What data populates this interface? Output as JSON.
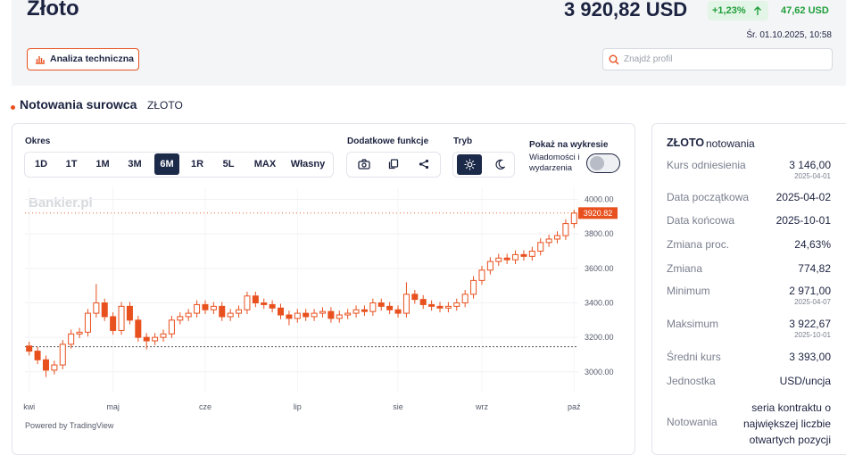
{
  "header": {
    "title": "Złoto",
    "price": "3 920,82 USD",
    "change_pct": "+1,23%",
    "change_abs": "47,62 USD",
    "timestamp": "Śr. 01.10.2025, 10:58",
    "button": "Analiza techniczna",
    "search_placeholder": "Znajdź profil"
  },
  "section": {
    "title": "Notowania surowca",
    "subtitle": "ZŁOTO"
  },
  "toolbar": {
    "period_label": "Okres",
    "periods": [
      "1D",
      "1T",
      "1M",
      "3M",
      "6M",
      "1R",
      "5L",
      "MAX",
      "Własny"
    ],
    "active_period_index": 4,
    "functions_label": "Dodatkowe funkcje",
    "mode_label": "Tryb",
    "show_label": "Pokaż na wykresie",
    "show_option": "Wiadomości i wydarzenia"
  },
  "chart_data": {
    "type": "candlestick",
    "watermark": "Bankier.pl",
    "footer": "Powered by TradingView",
    "color": "#e8501e",
    "categories": [
      "kwi",
      null,
      null,
      null,
      null,
      null,
      null,
      null,
      null,
      null,
      "maj",
      null,
      null,
      null,
      null,
      null,
      null,
      null,
      null,
      null,
      null,
      "cze",
      null,
      null,
      null,
      null,
      null,
      null,
      null,
      null,
      null,
      null,
      "lip",
      null,
      null,
      null,
      null,
      null,
      null,
      null,
      null,
      null,
      null,
      null,
      "sie",
      null,
      null,
      null,
      null,
      null,
      null,
      null,
      null,
      null,
      "wrz",
      null,
      null,
      null,
      null,
      null,
      null,
      null,
      null,
      null,
      null,
      "paź"
    ],
    "open": [
      3150,
      3120,
      3070,
      3010,
      3040,
      3160,
      3220,
      3230,
      3340,
      3400,
      3320,
      3240,
      3380,
      3300,
      3200,
      3180,
      3200,
      3220,
      3300,
      3320,
      3340,
      3390,
      3360,
      3380,
      3320,
      3340,
      3360,
      3440,
      3400,
      3390,
      3370,
      3330,
      3310,
      3340,
      3320,
      3340,
      3350,
      3310,
      3330,
      3340,
      3360,
      3350,
      3400,
      3380,
      3360,
      3340,
      3450,
      3420,
      3390,
      3380,
      3370,
      3380,
      3400,
      3450,
      3530,
      3590,
      3640,
      3660,
      3650,
      3680,
      3670,
      3700,
      3750,
      3770,
      3790,
      3860
    ],
    "high": [
      3175,
      3145,
      3095,
      3065,
      3185,
      3245,
      3255,
      3365,
      3510,
      3425,
      3345,
      3405,
      3405,
      3325,
      3225,
      3225,
      3245,
      3325,
      3345,
      3365,
      3415,
      3415,
      3405,
      3405,
      3365,
      3385,
      3465,
      3465,
      3425,
      3415,
      3395,
      3355,
      3365,
      3365,
      3365,
      3375,
      3375,
      3355,
      3365,
      3385,
      3385,
      3425,
      3425,
      3405,
      3385,
      3520,
      3475,
      3445,
      3415,
      3405,
      3405,
      3425,
      3475,
      3555,
      3615,
      3665,
      3685,
      3685,
      3705,
      3705,
      3725,
      3775,
      3795,
      3815,
      3885,
      3940
    ],
    "low": [
      3095,
      3045,
      2970,
      2985,
      3015,
      3135,
      3195,
      3205,
      3315,
      3295,
      3215,
      3215,
      3275,
      3175,
      3130,
      3155,
      3175,
      3195,
      3275,
      3295,
      3315,
      3335,
      3335,
      3295,
      3295,
      3315,
      3335,
      3375,
      3365,
      3345,
      3305,
      3270,
      3285,
      3295,
      3295,
      3315,
      3285,
      3285,
      3305,
      3315,
      3325,
      3325,
      3355,
      3335,
      3315,
      3315,
      3395,
      3365,
      3355,
      3345,
      3345,
      3355,
      3375,
      3425,
      3505,
      3565,
      3615,
      3625,
      3625,
      3645,
      3645,
      3675,
      3725,
      3745,
      3765,
      3835
    ],
    "close": [
      3120,
      3070,
      3010,
      3040,
      3160,
      3220,
      3230,
      3340,
      3400,
      3320,
      3240,
      3380,
      3300,
      3200,
      3180,
      3200,
      3220,
      3300,
      3320,
      3340,
      3390,
      3360,
      3380,
      3320,
      3340,
      3360,
      3440,
      3400,
      3390,
      3370,
      3330,
      3310,
      3340,
      3320,
      3340,
      3350,
      3310,
      3330,
      3340,
      3360,
      3350,
      3400,
      3380,
      3360,
      3340,
      3450,
      3420,
      3390,
      3380,
      3370,
      3380,
      3400,
      3450,
      3530,
      3590,
      3640,
      3660,
      3650,
      3680,
      3670,
      3700,
      3750,
      3770,
      3790,
      3860,
      3920.82
    ],
    "ylim": [
      2880,
      4070
    ],
    "yticks": [
      {
        "value": 3000,
        "label": "3000.00"
      },
      {
        "value": 3200,
        "label": "3200.00"
      },
      {
        "value": 3400,
        "label": "3400.00"
      },
      {
        "value": 3600,
        "label": "3600.00"
      },
      {
        "value": 3800,
        "label": "3800.00"
      },
      {
        "value": 4000,
        "label": "4000.00"
      }
    ],
    "last_price": {
      "value": 3920.82,
      "label": "3920.82"
    },
    "reference_line": 3146,
    "grid": true
  },
  "sidebar": {
    "title": "ZŁOTO",
    "subtitle": "notowania",
    "rows": [
      {
        "label": "Kurs odniesienia",
        "value": "3 146,00",
        "date": "2025-04-01"
      },
      {
        "label": "Data początkowa",
        "value": "2025-04-02"
      },
      {
        "label": "Data końcowa",
        "value": "2025-10-01"
      },
      {
        "label": "Zmiana proc.",
        "value": "24,63%"
      },
      {
        "label": "Zmiana",
        "value": "774,82"
      },
      {
        "label": "Minimum",
        "value": "2 971,00",
        "date": "2025-04-07"
      },
      {
        "label": "Maksimum",
        "value": "3 922,67",
        "date": "2025-10-01"
      },
      {
        "label": "Średni kurs",
        "value": "3 393,00"
      },
      {
        "label": "Jednostka",
        "value": "USD/uncja"
      },
      {
        "label": "Notowania",
        "value": "seria kontraktu o największej liczbie otwartych pozycji"
      }
    ]
  }
}
